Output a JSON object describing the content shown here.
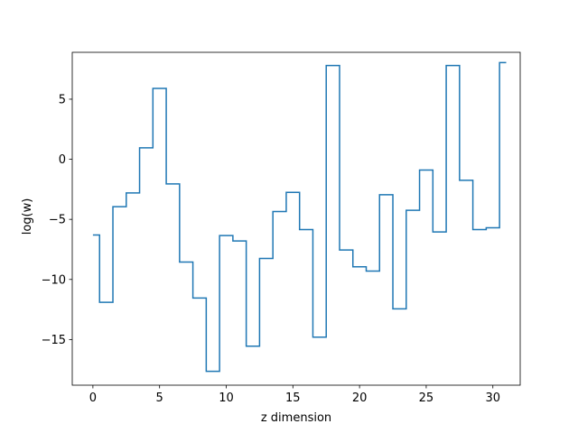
{
  "chart_data": {
    "type": "line",
    "drawstyle": "steps-mid",
    "xlabel": "z dimension",
    "ylabel": "log(w)",
    "xlim": [
      -1.55,
      32.05
    ],
    "ylim": [
      -18.8,
      8.9
    ],
    "xticks": [
      0,
      5,
      10,
      15,
      20,
      25,
      30
    ],
    "yticks": [
      -15,
      -10,
      -5,
      0,
      5
    ],
    "ytick_labels": [
      "−15",
      "−10",
      "−5",
      "0",
      "5"
    ],
    "grid": false,
    "series": [
      {
        "color": "#1f77b4",
        "x": [
          0,
          1,
          2,
          3,
          4,
          5,
          6,
          7,
          8,
          9,
          10,
          11,
          12,
          13,
          14,
          15,
          16,
          17,
          18,
          19,
          20,
          21,
          22,
          23,
          24,
          25,
          26,
          27,
          28,
          29,
          30,
          31
        ],
        "values": [
          -6.3,
          -11.9,
          -3.95,
          -2.8,
          0.95,
          5.9,
          -2.05,
          -8.55,
          -11.55,
          -17.65,
          -6.35,
          -6.8,
          -15.55,
          -8.25,
          -4.35,
          -2.75,
          -5.85,
          -14.8,
          7.8,
          -7.55,
          -8.95,
          -9.3,
          -2.95,
          -12.45,
          -4.25,
          -0.9,
          -6.05,
          7.8,
          -1.75,
          -5.85,
          -5.7,
          8.05
        ]
      }
    ]
  }
}
